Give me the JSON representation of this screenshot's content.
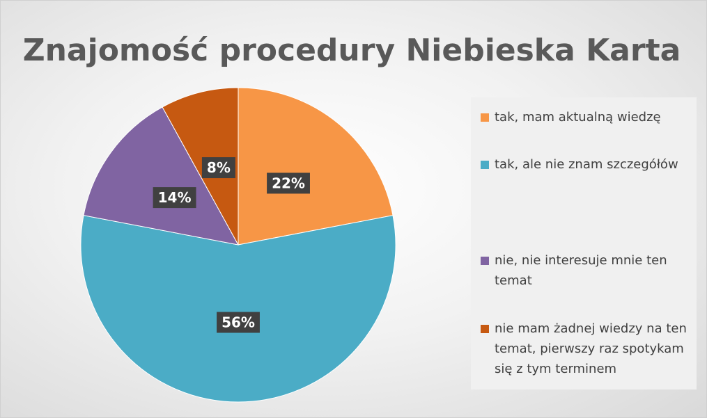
{
  "chart_data": {
    "type": "pie",
    "title": "Znajomość procedury Niebieska Karta",
    "categories": [
      "tak, mam aktualną wiedzę",
      "tak, ale nie znam szczegółów",
      "nie, nie interesuje mnie ten temat",
      "nie mam żadnej wiedzy na ten temat, pierwszy raz spotykam się z tym terminem"
    ],
    "values": [
      22,
      56,
      14,
      8
    ],
    "value_labels": [
      "22%",
      "56%",
      "14%",
      "8%"
    ],
    "colors": [
      "#f79646",
      "#4bacc6",
      "#8064a2",
      "#c65911"
    ],
    "legend": "right"
  }
}
